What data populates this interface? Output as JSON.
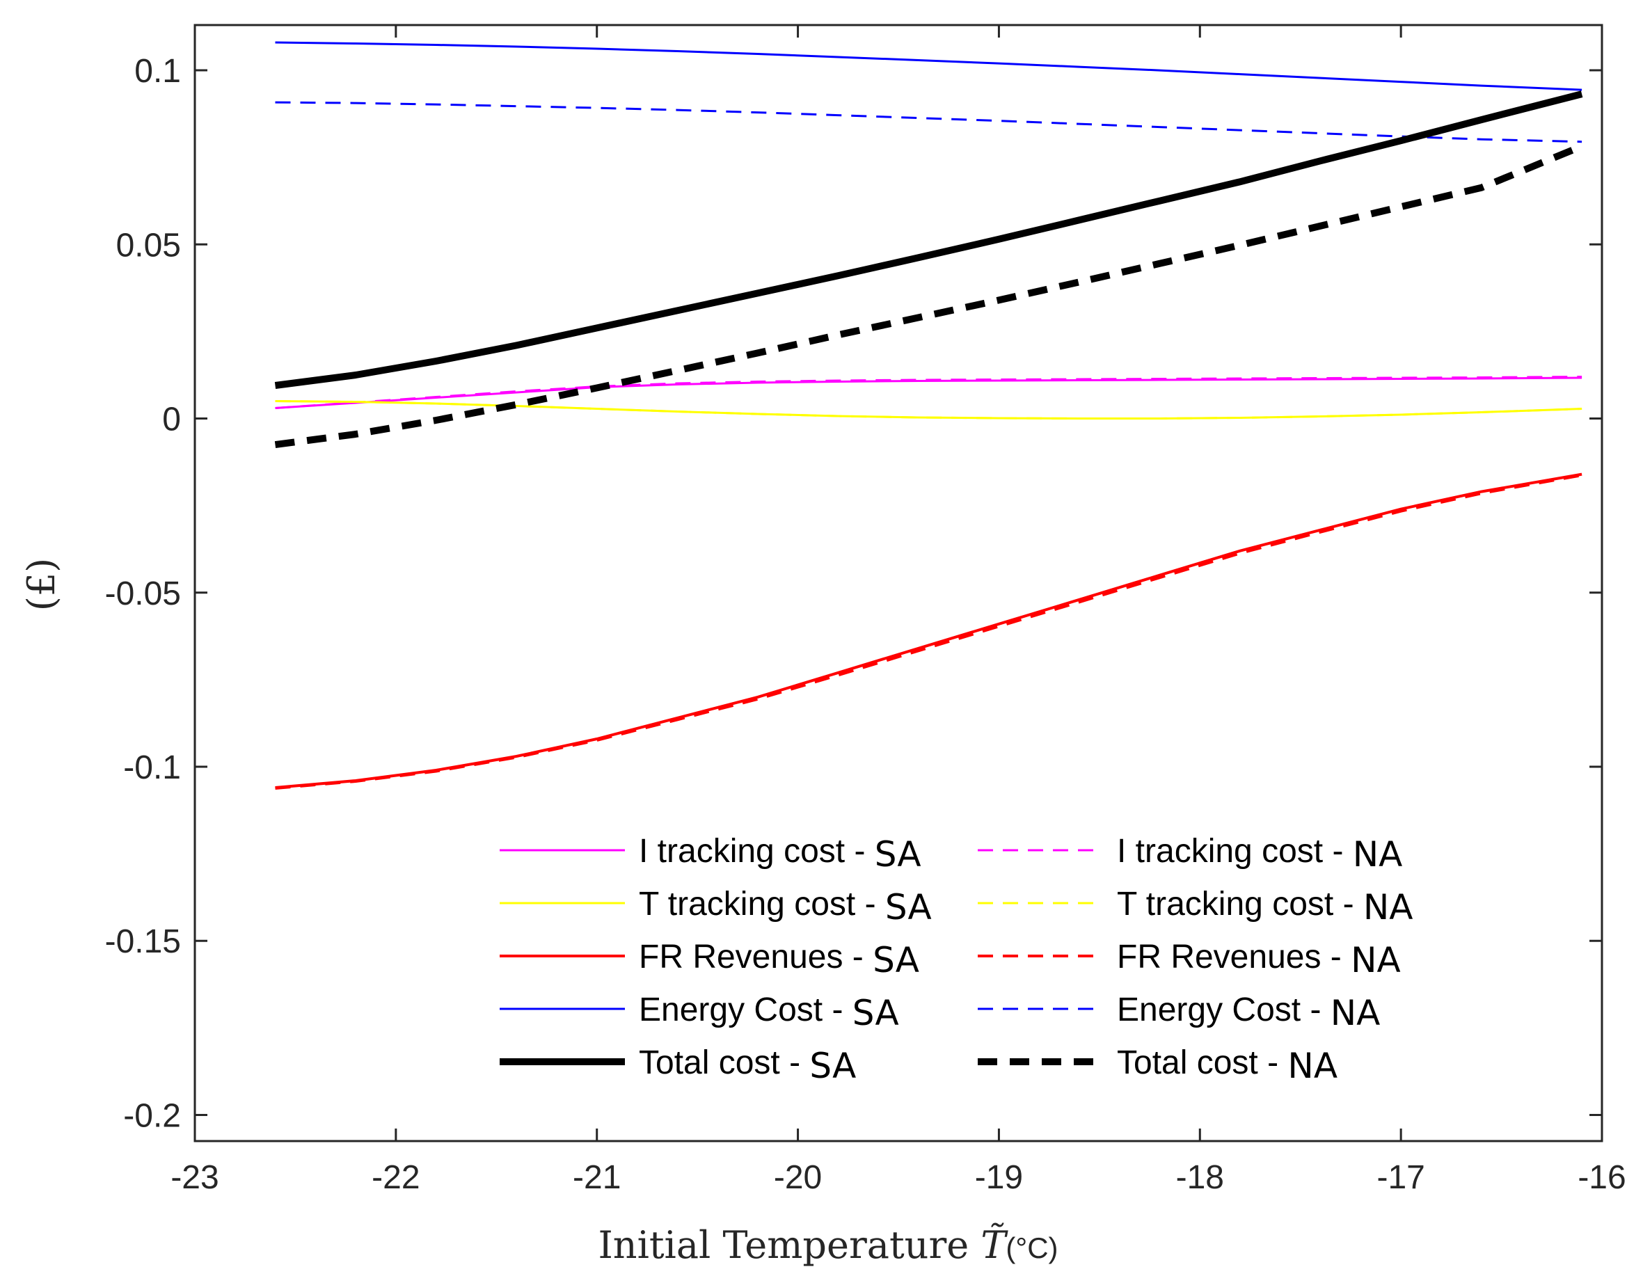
{
  "chart_data": {
    "type": "line",
    "title": "",
    "xlabel": "Initial Temperature",
    "xlabel_symbol": "T̃",
    "xlabel_unit": "(°C)",
    "ylabel": "(£)",
    "xlim": [
      -23,
      -16
    ],
    "ylim": [
      -0.2,
      0.1
    ],
    "xticks": [
      -23,
      -22,
      -21,
      -20,
      -19,
      -18,
      -17,
      -16
    ],
    "xtick_labels": [
      "-23",
      "-22",
      "-21",
      "-20",
      "-19",
      "-18",
      "-17",
      "-16"
    ],
    "yticks": [
      -0.2,
      -0.15,
      -0.1,
      -0.05,
      0,
      0.05,
      0.1
    ],
    "ytick_labels": [
      "-0.2",
      "-0.15",
      "-0.1",
      "-0.05",
      "0",
      "0.05",
      "0.1"
    ],
    "grid": false,
    "legend_position": "lower-right",
    "series": [
      {
        "name": "I tracking cost - SA",
        "label_main": "I tracking cost -",
        "label_suffix": "SA",
        "color": "#ff00ff",
        "style": "solid",
        "width": 3,
        "x": [
          -22.6,
          -22.2,
          -21.8,
          -21.4,
          -21.0,
          -20.6,
          -20.2,
          -19.8,
          -19.4,
          -19.0,
          -18.6,
          -18.2,
          -17.8,
          -17.4,
          -17.0,
          -16.6,
          -16.1
        ],
        "values": [
          0.003,
          0.0045,
          0.006,
          0.0075,
          0.009,
          0.0098,
          0.0103,
          0.0106,
          0.0108,
          0.0109,
          0.011,
          0.0111,
          0.0112,
          0.0113,
          0.0114,
          0.0115,
          0.0117
        ]
      },
      {
        "name": "I tracking cost - NA",
        "label_main": "I tracking cost -",
        "label_suffix": "NA",
        "color": "#ff00ff",
        "style": "dashed",
        "width": 3,
        "x": [
          -22.6,
          -22.2,
          -21.8,
          -21.4,
          -21.0,
          -20.6,
          -20.2,
          -19.8,
          -19.4,
          -19.0,
          -18.6,
          -18.2,
          -17.8,
          -17.4,
          -17.0,
          -16.6,
          -16.1
        ],
        "values": [
          0.003,
          0.0046,
          0.0062,
          0.0078,
          0.0092,
          0.0101,
          0.0106,
          0.0109,
          0.0111,
          0.0112,
          0.0113,
          0.0114,
          0.0115,
          0.0116,
          0.0117,
          0.0118,
          0.012
        ]
      },
      {
        "name": "T tracking cost - SA",
        "label_main": "T tracking cost -",
        "label_suffix": "SA",
        "color": "#ffff00",
        "style": "solid",
        "width": 3,
        "x": [
          -22.6,
          -22.2,
          -21.8,
          -21.4,
          -21.0,
          -20.6,
          -20.2,
          -19.8,
          -19.4,
          -19.0,
          -18.6,
          -18.2,
          -17.8,
          -17.4,
          -17.0,
          -16.6,
          -16.1
        ],
        "values": [
          0.005,
          0.0048,
          0.0043,
          0.0036,
          0.0028,
          0.002,
          0.0013,
          0.0007,
          0.0003,
          0.0001,
          0.0,
          0.0,
          0.0002,
          0.0006,
          0.0011,
          0.0018,
          0.0028
        ]
      },
      {
        "name": "T tracking cost - NA",
        "label_main": "T tracking cost -",
        "label_suffix": "NA",
        "color": "#ffff00",
        "style": "dashed",
        "width": 3,
        "x": [
          -22.6,
          -22.2,
          -21.8,
          -21.4,
          -21.0,
          -20.6,
          -20.2,
          -19.8,
          -19.4,
          -19.0,
          -18.6,
          -18.2,
          -17.8,
          -17.4,
          -17.0,
          -16.6,
          -16.1
        ],
        "values": [
          0.005,
          0.0048,
          0.0043,
          0.0036,
          0.0028,
          0.002,
          0.0013,
          0.0007,
          0.0003,
          0.0001,
          0.0,
          0.0,
          0.0002,
          0.0006,
          0.0011,
          0.0018,
          0.0028
        ]
      },
      {
        "name": "FR Revenues - SA",
        "label_main": "FR Revenues -",
        "label_suffix": "SA",
        "color": "#ff0000",
        "style": "solid",
        "width": 4,
        "x": [
          -22.6,
          -22.2,
          -21.8,
          -21.4,
          -21.0,
          -20.6,
          -20.2,
          -19.8,
          -19.4,
          -19.0,
          -18.6,
          -18.2,
          -17.8,
          -17.4,
          -17.0,
          -16.6,
          -16.1
        ],
        "values": [
          -0.106,
          -0.104,
          -0.101,
          -0.097,
          -0.092,
          -0.086,
          -0.08,
          -0.073,
          -0.066,
          -0.059,
          -0.052,
          -0.045,
          -0.038,
          -0.032,
          -0.026,
          -0.021,
          -0.016
        ]
      },
      {
        "name": "FR Revenues - NA",
        "label_main": "FR Revenues -",
        "label_suffix": "NA",
        "color": "#ff0000",
        "style": "dashed",
        "width": 4,
        "x": [
          -22.6,
          -22.2,
          -21.8,
          -21.4,
          -21.0,
          -20.6,
          -20.2,
          -19.8,
          -19.4,
          -19.0,
          -18.6,
          -18.2,
          -17.8,
          -17.4,
          -17.0,
          -16.6,
          -16.1
        ],
        "values": [
          -0.1062,
          -0.1042,
          -0.1013,
          -0.0973,
          -0.0924,
          -0.0865,
          -0.0806,
          -0.0737,
          -0.0667,
          -0.0597,
          -0.0527,
          -0.0457,
          -0.0387,
          -0.0326,
          -0.0266,
          -0.0215,
          -0.0163
        ]
      },
      {
        "name": "Energy Cost - SA",
        "label_main": "Energy Cost -",
        "label_suffix": "SA",
        "color": "#0000ff",
        "style": "solid",
        "width": 3,
        "x": [
          -22.6,
          -22.2,
          -21.8,
          -21.4,
          -21.0,
          -20.6,
          -20.2,
          -19.8,
          -19.4,
          -19.0,
          -18.6,
          -18.2,
          -17.8,
          -17.4,
          -17.0,
          -16.6,
          -16.1
        ],
        "values": [
          0.108,
          0.1077,
          0.1073,
          0.1068,
          0.1062,
          0.1055,
          0.1047,
          0.1038,
          0.1029,
          0.102,
          0.101,
          0.1,
          0.0989,
          0.0978,
          0.0967,
          0.0956,
          0.0944
        ]
      },
      {
        "name": "Energy Cost - NA",
        "label_main": "Energy Cost -",
        "label_suffix": "NA",
        "color": "#0000ff",
        "style": "dashed",
        "width": 3,
        "x": [
          -22.6,
          -22.2,
          -21.8,
          -21.4,
          -21.0,
          -20.6,
          -20.2,
          -19.8,
          -19.4,
          -19.0,
          -18.6,
          -18.2,
          -17.8,
          -17.4,
          -17.0,
          -16.6,
          -16.1
        ],
        "values": [
          0.0908,
          0.0906,
          0.0902,
          0.0897,
          0.0892,
          0.0886,
          0.0879,
          0.0871,
          0.0863,
          0.0855,
          0.0846,
          0.0837,
          0.0828,
          0.0819,
          0.081,
          0.0802,
          0.0795
        ]
      },
      {
        "name": "Total cost - SA",
        "label_main": "Total cost -",
        "label_suffix": "SA",
        "color": "#000000",
        "style": "solid",
        "width": 10,
        "x": [
          -22.6,
          -22.2,
          -21.8,
          -21.4,
          -21.0,
          -20.6,
          -20.2,
          -19.8,
          -19.4,
          -19.0,
          -18.6,
          -18.2,
          -17.8,
          -17.4,
          -17.0,
          -16.6,
          -16.1
        ],
        "values": [
          0.0095,
          0.0125,
          0.0165,
          0.021,
          0.026,
          0.031,
          0.036,
          0.041,
          0.0462,
          0.0515,
          0.057,
          0.0625,
          0.068,
          0.074,
          0.0798,
          0.0858,
          0.0932
        ]
      },
      {
        "name": "Total cost - NA",
        "label_main": "Total cost -",
        "label_suffix": "NA",
        "color": "#000000",
        "style": "dashed",
        "width": 10,
        "x": [
          -22.6,
          -22.2,
          -21.8,
          -21.4,
          -21.0,
          -20.6,
          -20.2,
          -19.8,
          -19.4,
          -19.0,
          -18.6,
          -18.2,
          -17.8,
          -17.4,
          -17.0,
          -16.6,
          -16.1
        ],
        "values": [
          -0.0075,
          -0.0045,
          -0.0005,
          0.004,
          0.0088,
          0.0138,
          0.0188,
          0.024,
          0.029,
          0.034,
          0.0392,
          0.0445,
          0.0498,
          0.0553,
          0.0608,
          0.0663,
          0.0782
        ]
      }
    ]
  }
}
